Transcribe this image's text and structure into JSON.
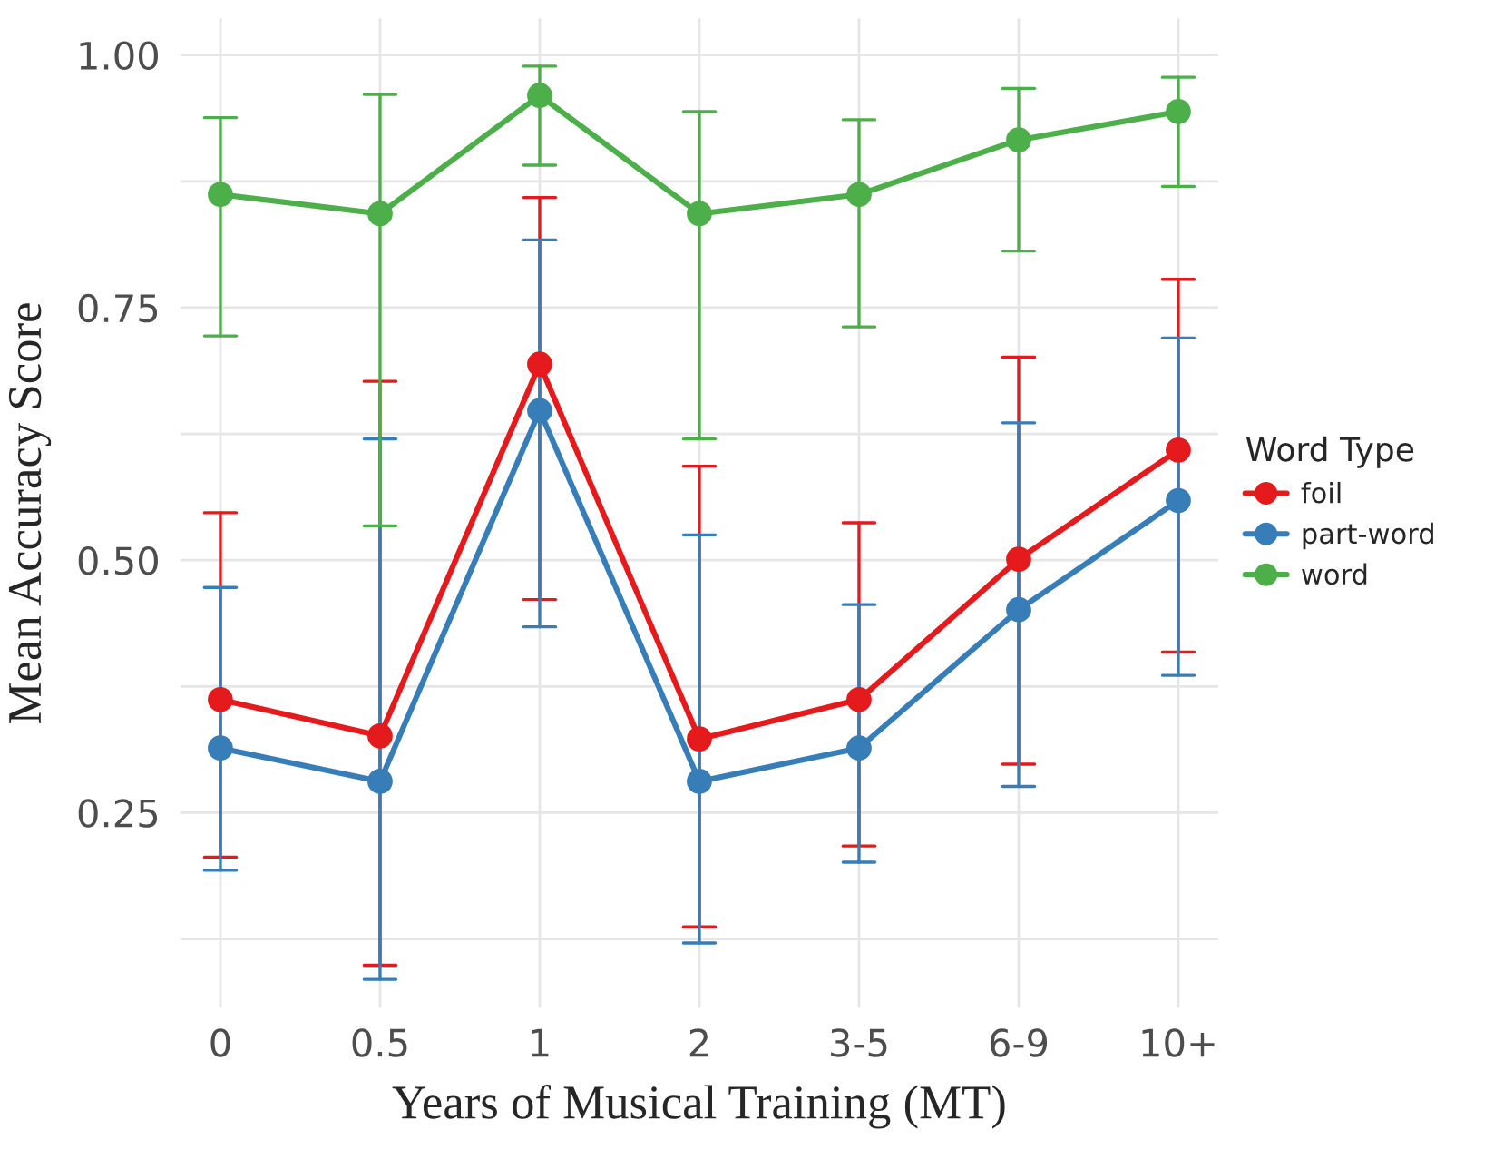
{
  "chart_data": {
    "type": "line",
    "xlabel": "Years of Musical Training (MT)",
    "ylabel": "Mean Accuracy Score",
    "legend_title": "Word Type",
    "categories": [
      "0",
      "0.5",
      "1",
      "2",
      "3-5",
      "6-9",
      "10+"
    ],
    "series": [
      {
        "name": "foil",
        "color": "#e41a1c",
        "values": [
          0.362,
          0.326,
          0.694,
          0.323,
          0.362,
          0.501,
          0.609
        ],
        "errors": [
          [
            0.206,
            0.547
          ],
          [
            0.099,
            0.677
          ],
          [
            0.461,
            0.859
          ],
          [
            0.137,
            0.593
          ],
          [
            0.217,
            0.537
          ],
          [
            0.298,
            0.701
          ],
          [
            0.409,
            0.778
          ]
        ]
      },
      {
        "name": "part-word",
        "color": "#377eb8",
        "values": [
          0.314,
          0.281,
          0.648,
          0.281,
          0.314,
          0.451,
          0.559
        ],
        "errors": [
          [
            0.193,
            0.473
          ],
          [
            0.085,
            0.62
          ],
          [
            0.434,
            0.817
          ],
          [
            0.121,
            0.525
          ],
          [
            0.201,
            0.456
          ],
          [
            0.276,
            0.636
          ],
          [
            0.386,
            0.72
          ]
        ]
      },
      {
        "name": "word",
        "color": "#4daf4a",
        "values": [
          0.862,
          0.843,
          0.96,
          0.843,
          0.862,
          0.916,
          0.944
        ],
        "errors": [
          [
            0.722,
            0.938
          ],
          [
            0.534,
            0.961
          ],
          [
            0.891,
            0.989
          ],
          [
            0.62,
            0.944
          ],
          [
            0.731,
            0.936
          ],
          [
            0.806,
            0.967
          ],
          [
            0.87,
            0.978
          ]
        ]
      }
    ],
    "ylim": [
      0.057,
      1.036
    ],
    "yticks": [
      {
        "value": 0.125,
        "label": null
      },
      0.25,
      {
        "value": 0.375,
        "label": null
      },
      {
        "value": 0.5,
        "label": "0.50"
      },
      {
        "value": 0.625,
        "label": null
      },
      0.75,
      {
        "value": 0.875,
        "label": null
      },
      {
        "value": 1,
        "label": "1.00"
      }
    ],
    "grid": true,
    "legend": "right",
    "marker": "circle",
    "line_style": "solid"
  }
}
